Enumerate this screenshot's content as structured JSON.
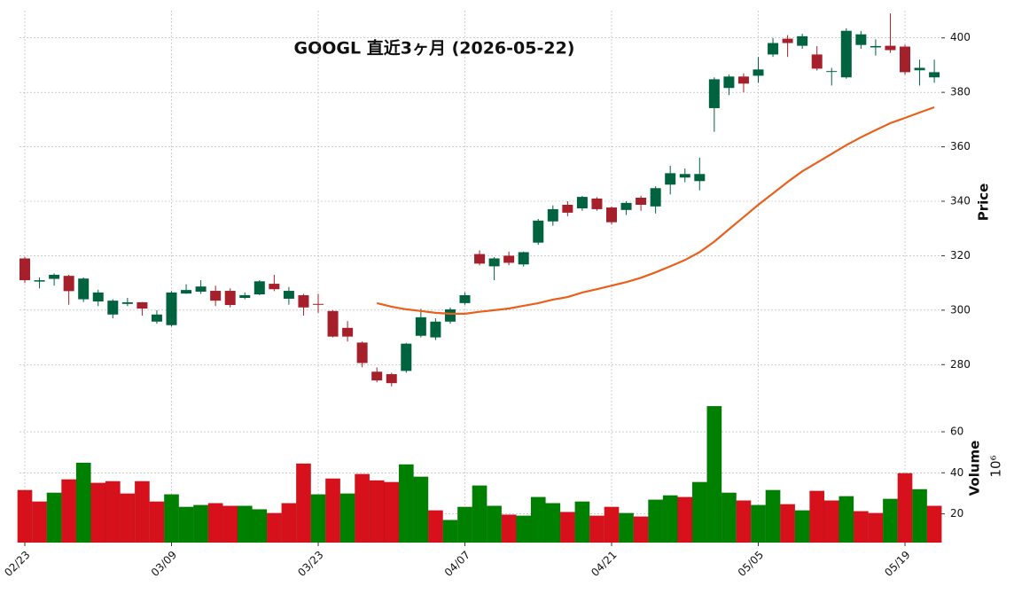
{
  "chart_data": {
    "type": "candlestick",
    "title": "GOOGL  直近3ヶ月  (2026-05-22)",
    "categories": [
      "02/23",
      null,
      null,
      null,
      null,
      null,
      null,
      null,
      null,
      null,
      "03/09",
      null,
      null,
      null,
      null,
      null,
      null,
      null,
      null,
      null,
      "03/23",
      null,
      null,
      null,
      null,
      null,
      null,
      null,
      null,
      null,
      "04/07",
      null,
      null,
      null,
      null,
      null,
      null,
      null,
      null,
      null,
      "04/21",
      null,
      null,
      null,
      null,
      null,
      null,
      null,
      null,
      null,
      "05/05",
      null,
      null,
      null,
      null,
      null,
      null,
      null,
      null,
      null,
      "05/19",
      null,
      null
    ],
    "open": [
      319,
      310.5,
      311.5,
      312.6,
      304,
      303.2,
      298.4,
      302.3,
      302.9,
      295.8,
      294.5,
      306.1,
      306.8,
      307.1,
      307.1,
      304.5,
      305.8,
      309.7,
      304.2,
      305.5,
      302.3,
      299.7,
      293.5,
      288.1,
      277.4,
      276.5,
      277.7,
      290.6,
      290,
      295.8,
      302.6,
      320.6,
      316.1,
      320,
      316.8,
      324.8,
      332.6,
      338.7,
      337.4,
      341,
      337.7,
      336.8,
      341.3,
      338.1,
      346.1,
      348.7,
      347.4,
      374.2,
      381.6,
      385.8,
      386.1,
      393.9,
      399.7,
      397.1,
      393.9,
      387.5,
      385.5,
      397.4,
      396.5,
      397.1,
      396.8,
      388.1,
      385.5
    ],
    "high": [
      319.5,
      312,
      313.5,
      313,
      312,
      307.5,
      304,
      304.5,
      303,
      300,
      307,
      309.5,
      311,
      309,
      308,
      306.5,
      311,
      313,
      308.5,
      306,
      306,
      300,
      296,
      288.5,
      279,
      277,
      288,
      300.5,
      297,
      301,
      306.5,
      322,
      319.5,
      321.5,
      321.5,
      333.5,
      338.5,
      340,
      342,
      341.5,
      338,
      340,
      342,
      345.5,
      353,
      352,
      356,
      385.5,
      386.5,
      387,
      393,
      400,
      401,
      401.5,
      397,
      389,
      403.5,
      402.5,
      399.5,
      409,
      397.5,
      392,
      392
    ],
    "low": [
      310,
      308,
      309,
      302,
      303,
      301.5,
      297,
      301.5,
      298,
      295,
      294,
      306,
      306,
      301.5,
      301,
      304,
      305.5,
      307,
      302,
      298,
      299,
      290,
      288.5,
      279,
      273.5,
      272,
      277,
      290,
      289,
      295,
      302,
      316.5,
      311,
      316.5,
      316,
      324,
      331,
      334.5,
      336.5,
      336.5,
      331.5,
      335,
      336.5,
      335.5,
      342.5,
      347,
      344,
      365.5,
      379,
      380,
      383.5,
      393,
      393,
      396,
      388,
      382.5,
      385,
      396,
      393.5,
      394.5,
      386.5,
      382.5,
      383.5
    ],
    "close": [
      311,
      311,
      313,
      307,
      311.6,
      306.5,
      303.5,
      302.9,
      300.6,
      298.4,
      306.5,
      307.4,
      308.7,
      303.5,
      301.9,
      305.5,
      310.6,
      307.7,
      307.1,
      301,
      302,
      290.3,
      290.3,
      280.6,
      274.2,
      273.2,
      287.7,
      297.4,
      295.8,
      300.3,
      305.5,
      317.1,
      319,
      317.4,
      321.3,
      332.9,
      337.1,
      335.8,
      341.6,
      337.1,
      332.3,
      339.4,
      338.7,
      344.8,
      350.3,
      350,
      350,
      384.8,
      385.8,
      383.2,
      388.4,
      398.1,
      398.1,
      400.6,
      388.7,
      387.8,
      402.6,
      401.3,
      397,
      395.5,
      387.4,
      389,
      387.4
    ],
    "up_color": "#006340",
    "down_color": "#a5202a",
    "ma": {
      "color": "#e8601c",
      "values": [
        null,
        null,
        null,
        null,
        null,
        null,
        null,
        null,
        null,
        null,
        null,
        null,
        null,
        null,
        null,
        null,
        null,
        null,
        null,
        null,
        null,
        null,
        null,
        null,
        302.6,
        301.3,
        300.3,
        299.7,
        299,
        298.7,
        298.7,
        299.4,
        300,
        300.6,
        301.6,
        302.6,
        303.9,
        304.8,
        306.5,
        307.7,
        309,
        310.3,
        311.9,
        313.9,
        316.1,
        318.4,
        321.3,
        325.2,
        329.7,
        334.2,
        338.7,
        342.9,
        347.1,
        351,
        354.2,
        357.4,
        360.6,
        363.5,
        366.1,
        368.7,
        370.6,
        372.6,
        374.5
      ]
    },
    "ylim": [
      270,
      410
    ],
    "yticks": [
      280,
      300,
      320,
      340,
      360,
      380,
      400
    ],
    "ylabel": "Price",
    "grid": true,
    "volume": {
      "ylabel": "Volume",
      "exponent": "10⁶",
      "ylim": [
        6,
        76
      ],
      "yticks": [
        20,
        40,
        60
      ],
      "values": [
        31.6,
        26,
        30.3,
        36.8,
        44.9,
        35.1,
        35.9,
        29.9,
        35.9,
        26,
        29.5,
        23.4,
        24.3,
        25.2,
        23.9,
        23.9,
        22.2,
        20.4,
        25.2,
        44.5,
        29.5,
        37.2,
        29.9,
        39.4,
        36.3,
        35.5,
        44.1,
        38.1,
        21.7,
        17,
        23.4,
        33.8,
        23.9,
        19.6,
        19.1,
        28.2,
        25.2,
        20.9,
        26,
        19.1,
        23.4,
        20.4,
        18.7,
        26.9,
        29,
        28.2,
        35.5,
        72.5,
        30.3,
        26.5,
        24.3,
        31.6,
        24.7,
        21.7,
        31.2,
        26.5,
        28.6,
        21.3,
        20.4,
        27.3,
        39.8,
        32,
        23.9
      ],
      "colors": [
        "#d6111b",
        "#d6111b",
        "#008000",
        "#d6111b",
        "#008000",
        "#d6111b",
        "#d6111b",
        "#d6111b",
        "#d6111b",
        "#d6111b",
        "#008000",
        "#008000",
        "#008000",
        "#d6111b",
        "#d6111b",
        "#008000",
        "#008000",
        "#d6111b",
        "#d6111b",
        "#d6111b",
        "#008000",
        "#d6111b",
        "#008000",
        "#d6111b",
        "#d6111b",
        "#d6111b",
        "#008000",
        "#008000",
        "#d6111b",
        "#008000",
        "#008000",
        "#008000",
        "#008000",
        "#d6111b",
        "#008000",
        "#008000",
        "#008000",
        "#d6111b",
        "#008000",
        "#d6111b",
        "#d6111b",
        "#008000",
        "#d6111b",
        "#008000",
        "#008000",
        "#d6111b",
        "#008000",
        "#008000",
        "#008000",
        "#d6111b",
        "#008000",
        "#008000",
        "#d6111b",
        "#008000",
        "#d6111b",
        "#d6111b",
        "#008000",
        "#d6111b",
        "#d6111b",
        "#008000",
        "#d6111b",
        "#008000",
        "#d6111b"
      ]
    }
  }
}
